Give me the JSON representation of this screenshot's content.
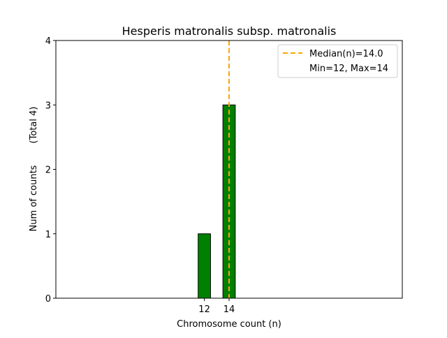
{
  "chart_data": {
    "type": "bar",
    "title": "Hesperis matronalis subsp. matronalis",
    "xlabel": "Chromosome count (n)",
    "ylabel": "Num of counts",
    "ylabel_note": "(Total 4)",
    "x": [
      12,
      14
    ],
    "values": [
      1,
      3
    ],
    "xticks": [
      "12",
      "14"
    ],
    "yticks": [
      "0",
      "1",
      "2",
      "3",
      "4"
    ],
    "xlim": [
      0,
      28
    ],
    "ylim": [
      0,
      4
    ],
    "median": 14.0,
    "grid": false,
    "legend_placement": "top-right",
    "legend": [
      {
        "label": "Median(n)=14.0",
        "style": "dashed-line"
      },
      {
        "label": "Min=12, Max=14",
        "style": "none"
      }
    ],
    "colors": {
      "bar": "#008000",
      "bar_edge": "#000000",
      "median": "#ffa500"
    }
  }
}
